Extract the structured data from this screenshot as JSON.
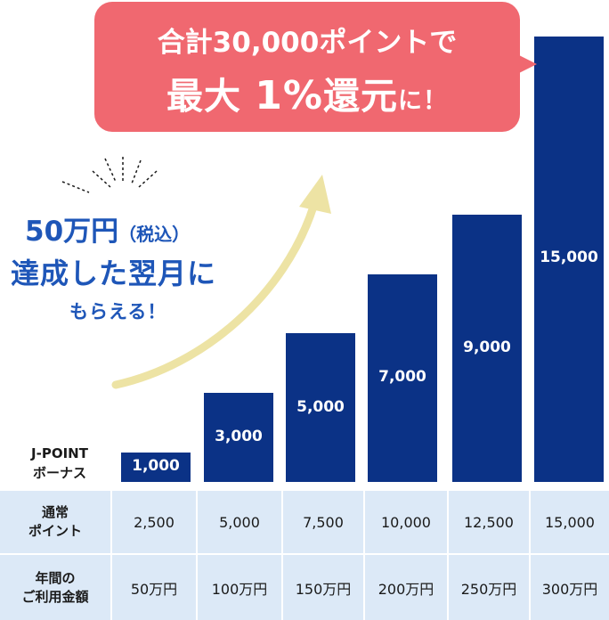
{
  "bubble": {
    "line1": "合計30,000ポイントで",
    "line2_a": "最大 ",
    "line2_pct": "1%",
    "line2_b": "還元",
    "line2_c": "に！"
  },
  "promo": {
    "line1_main": "50万円",
    "line1_small": "（税込）",
    "line2": "達成した翌月に",
    "line3": "もらえる！"
  },
  "colors": {
    "bar": "#0b3286",
    "bubble": "#f06870",
    "promo_text": "#1e56b8",
    "table_bg": "#dce9f7",
    "arrow": "#ede3a4"
  },
  "chart_data": {
    "type": "bar",
    "categories": [
      "50万円",
      "100万円",
      "150万円",
      "200万円",
      "250万円",
      "300万円"
    ],
    "series": [
      {
        "name": "J-POINTボーナス",
        "values": [
          1000,
          3000,
          5000,
          7000,
          9000,
          15000
        ]
      }
    ],
    "value_labels": [
      "1,000",
      "3,000",
      "5,000",
      "7,000",
      "9,000",
      "15,000"
    ],
    "ylabel_lines": [
      "J-POINT",
      "ボーナス"
    ],
    "title": "",
    "grid": false
  },
  "table": {
    "rows": [
      {
        "header": [
          "通常",
          "ポイント"
        ],
        "cells": [
          "2,500",
          "5,000",
          "7,500",
          "10,000",
          "12,500",
          "15,000"
        ]
      },
      {
        "header": [
          "年間の",
          "ご利用金額"
        ],
        "cells": [
          "50万円",
          "100万円",
          "150万円",
          "200万円",
          "250万円",
          "300万円"
        ]
      }
    ]
  }
}
